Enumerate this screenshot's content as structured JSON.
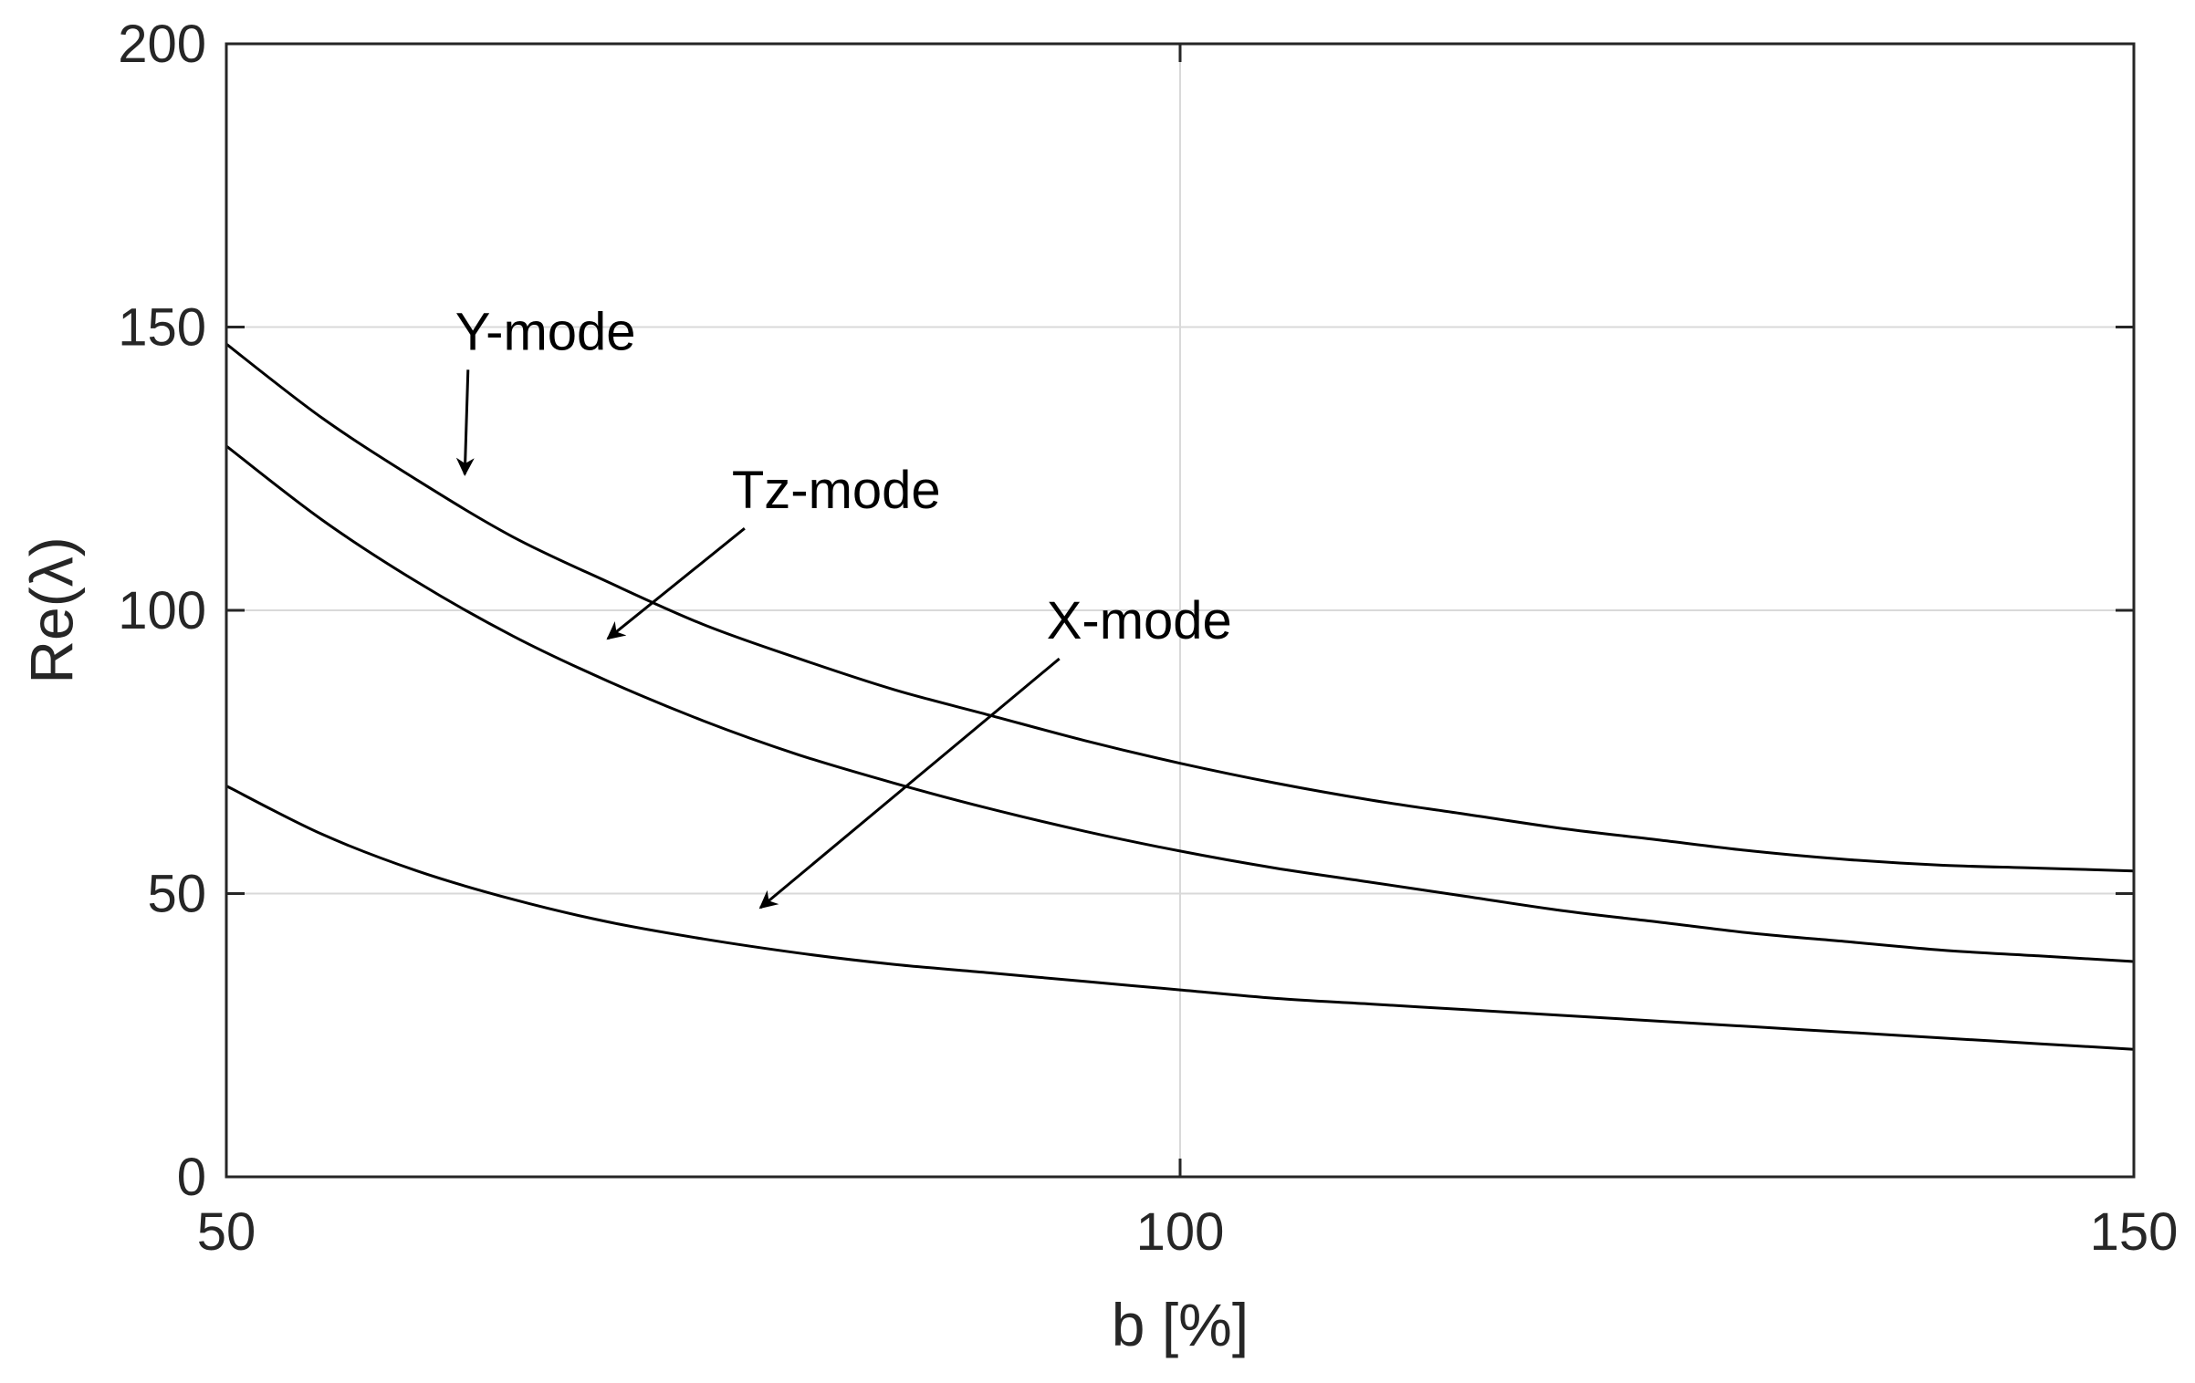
{
  "chart_data": {
    "type": "line",
    "title": "",
    "xlabel": "b [%]",
    "ylabel": "Re(λ)",
    "xlim": [
      50,
      150
    ],
    "ylim": [
      0,
      200
    ],
    "xticks": [
      50,
      100,
      150
    ],
    "yticks": [
      0,
      50,
      100,
      150,
      200
    ],
    "xtick_labels": [
      "50",
      "100",
      "150"
    ],
    "ytick_labels": [
      "0",
      "50",
      "100",
      "150",
      "200"
    ],
    "grid": true,
    "box": true,
    "legend": "none",
    "line_color": "#000000",
    "grid_color": "#d9d9d9",
    "series": [
      {
        "name": "Y-mode",
        "x": [
          50,
          55,
          60,
          65,
          70,
          75,
          80,
          85,
          90,
          95,
          100,
          105,
          110,
          115,
          120,
          125,
          130,
          135,
          140,
          145,
          150
        ],
        "y": [
          147,
          134,
          123,
          113,
          105,
          97.5,
          91.5,
          86,
          81.5,
          77,
          73,
          69.5,
          66.5,
          64,
          61.5,
          59.5,
          57.5,
          56,
          55,
          54.5,
          54
        ]
      },
      {
        "name": "Tz-mode",
        "x": [
          50,
          55,
          60,
          65,
          70,
          75,
          80,
          85,
          90,
          95,
          100,
          105,
          110,
          115,
          120,
          125,
          130,
          135,
          140,
          145,
          150
        ],
        "y": [
          129,
          116,
          105,
          95.5,
          87.5,
          80.5,
          74.5,
          69.5,
          65,
          61,
          57.5,
          54.5,
          52,
          49.5,
          47,
          45,
          43,
          41.5,
          40,
          39,
          38
        ]
      },
      {
        "name": "X-mode",
        "x": [
          50,
          55,
          60,
          65,
          70,
          75,
          80,
          85,
          90,
          95,
          100,
          105,
          110,
          115,
          120,
          125,
          130,
          135,
          140,
          145,
          150
        ],
        "y": [
          69,
          60.5,
          54,
          49,
          45,
          42,
          39.5,
          37.5,
          36,
          34.5,
          33,
          31.5,
          30.5,
          29.5,
          28.5,
          27.5,
          26.5,
          25.5,
          24.5,
          23.5,
          22.5
        ]
      }
    ],
    "annotations": [
      {
        "text": "Y-mode",
        "text_x": 62,
        "text_y": 146,
        "arrow_to_x": 62.5,
        "arrow_to_y": 124
      },
      {
        "text": "Tz-mode",
        "text_x": 76.5,
        "text_y": 118,
        "arrow_to_x": 70,
        "arrow_to_y": 95
      },
      {
        "text": "X-mode",
        "text_x": 93,
        "text_y": 95,
        "arrow_to_x": 78,
        "arrow_to_y": 47.5
      }
    ]
  }
}
